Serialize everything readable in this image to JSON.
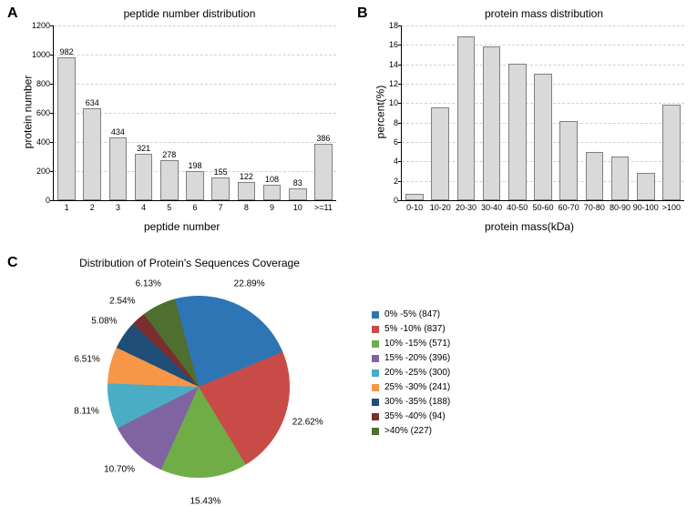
{
  "panelA": {
    "label": "A",
    "title": "peptide number distribution",
    "ylabel": "protein number",
    "xlabel": "peptide number",
    "ylim": [
      0,
      1200
    ],
    "ytick_step": 200,
    "categories": [
      "1",
      "2",
      "3",
      "4",
      "5",
      "6",
      "7",
      "8",
      "9",
      "10",
      ">=11"
    ],
    "values": [
      982,
      634,
      434,
      321,
      278,
      198,
      155,
      122,
      108,
      83,
      386
    ],
    "bar_color": "#d9d9d9",
    "bar_border": "#808080",
    "grid_color": "#d0d0d0",
    "title_fontsize": 12,
    "label_fontsize": 12,
    "tick_fontsize": 9
  },
  "panelB": {
    "label": "B",
    "title": "protein mass distribution",
    "ylabel": "percent(%)",
    "xlabel": "protein mass(kDa)",
    "ylim": [
      0,
      18
    ],
    "ytick_step": 2,
    "categories": [
      "0-10",
      "10-20",
      "20-30",
      "30-40",
      "40-50",
      "50-60",
      "60-70",
      "70-80",
      "80-90",
      "90-100",
      ">100"
    ],
    "values": [
      0.7,
      9.6,
      16.9,
      15.8,
      14.1,
      13.0,
      8.2,
      5.0,
      4.5,
      2.8,
      9.8
    ],
    "bar_color": "#d9d9d9",
    "bar_border": "#808080",
    "grid_color": "#d0d0d0",
    "title_fontsize": 12,
    "label_fontsize": 12,
    "tick_fontsize": 9
  },
  "panelC": {
    "label": "C",
    "title": "Distribution of Protein's Sequences Coverage",
    "type": "pie",
    "slices": [
      {
        "label": "0% -5% (847)",
        "pct": 22.89,
        "color": "#2e75b6",
        "pct_text": "22.89%"
      },
      {
        "label": "5% -10% (837)",
        "pct": 22.62,
        "color": "#c84b47",
        "pct_text": "22.62%"
      },
      {
        "label": "10% -15% (571)",
        "pct": 15.43,
        "color": "#70ad47",
        "pct_text": "15.43%"
      },
      {
        "label": "15% -20% (396)",
        "pct": 10.7,
        "color": "#8064a2",
        "pct_text": "10.70%"
      },
      {
        "label": "20% -25% (300)",
        "pct": 8.11,
        "color": "#4bacc6",
        "pct_text": "8.11%"
      },
      {
        "label": "25% -30% (241)",
        "pct": 6.51,
        "color": "#f79646",
        "pct_text": "6.51%"
      },
      {
        "label": "30% -35% (188)",
        "pct": 5.08,
        "color": "#1f4e79",
        "pct_text": "5.08%"
      },
      {
        "label": "35% -40% (94)",
        "pct": 2.54,
        "color": "#7b2e2e",
        "pct_text": "2.54%"
      },
      {
        "label": ">40% (227)",
        "pct": 6.13,
        "color": "#4e6f2f",
        "pct_text": "6.13%"
      }
    ],
    "background_color": "#ffffff",
    "title_fontsize": 12,
    "legend_fontsize": 10
  }
}
